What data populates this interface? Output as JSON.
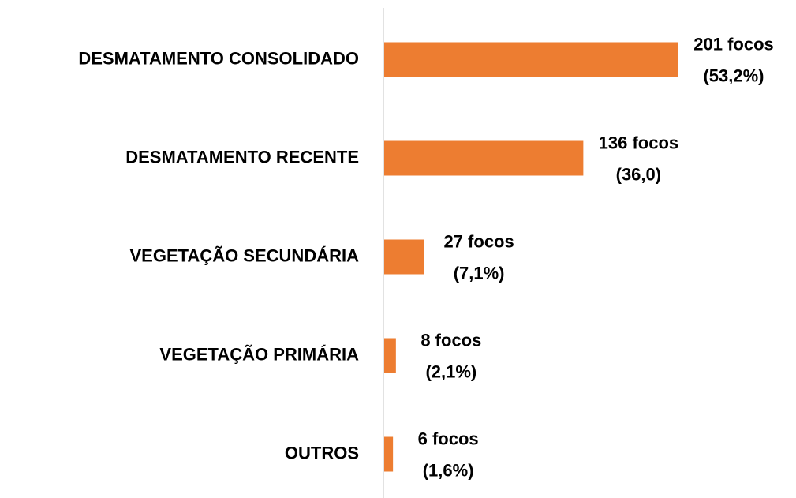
{
  "chart_data": {
    "type": "bar",
    "orientation": "horizontal",
    "categories": [
      "DESMATAMENTO CONSOLIDADO",
      "DESMATAMENTO RECENTE",
      "VEGETAÇÃO SECUNDÁRIA",
      "VEGETAÇÃO PRIMÁRIA",
      "OUTROS"
    ],
    "values": [
      201,
      136,
      27,
      8,
      6
    ],
    "value_labels": [
      "201 focos",
      "136 focos",
      "27 focos",
      "8 focos",
      "6 focos"
    ],
    "percent_labels": [
      "(53,2%)",
      "(36,0)",
      "(7,1%)",
      "(2,1%)",
      "(1,6%)"
    ],
    "color": "#ed7d31"
  }
}
